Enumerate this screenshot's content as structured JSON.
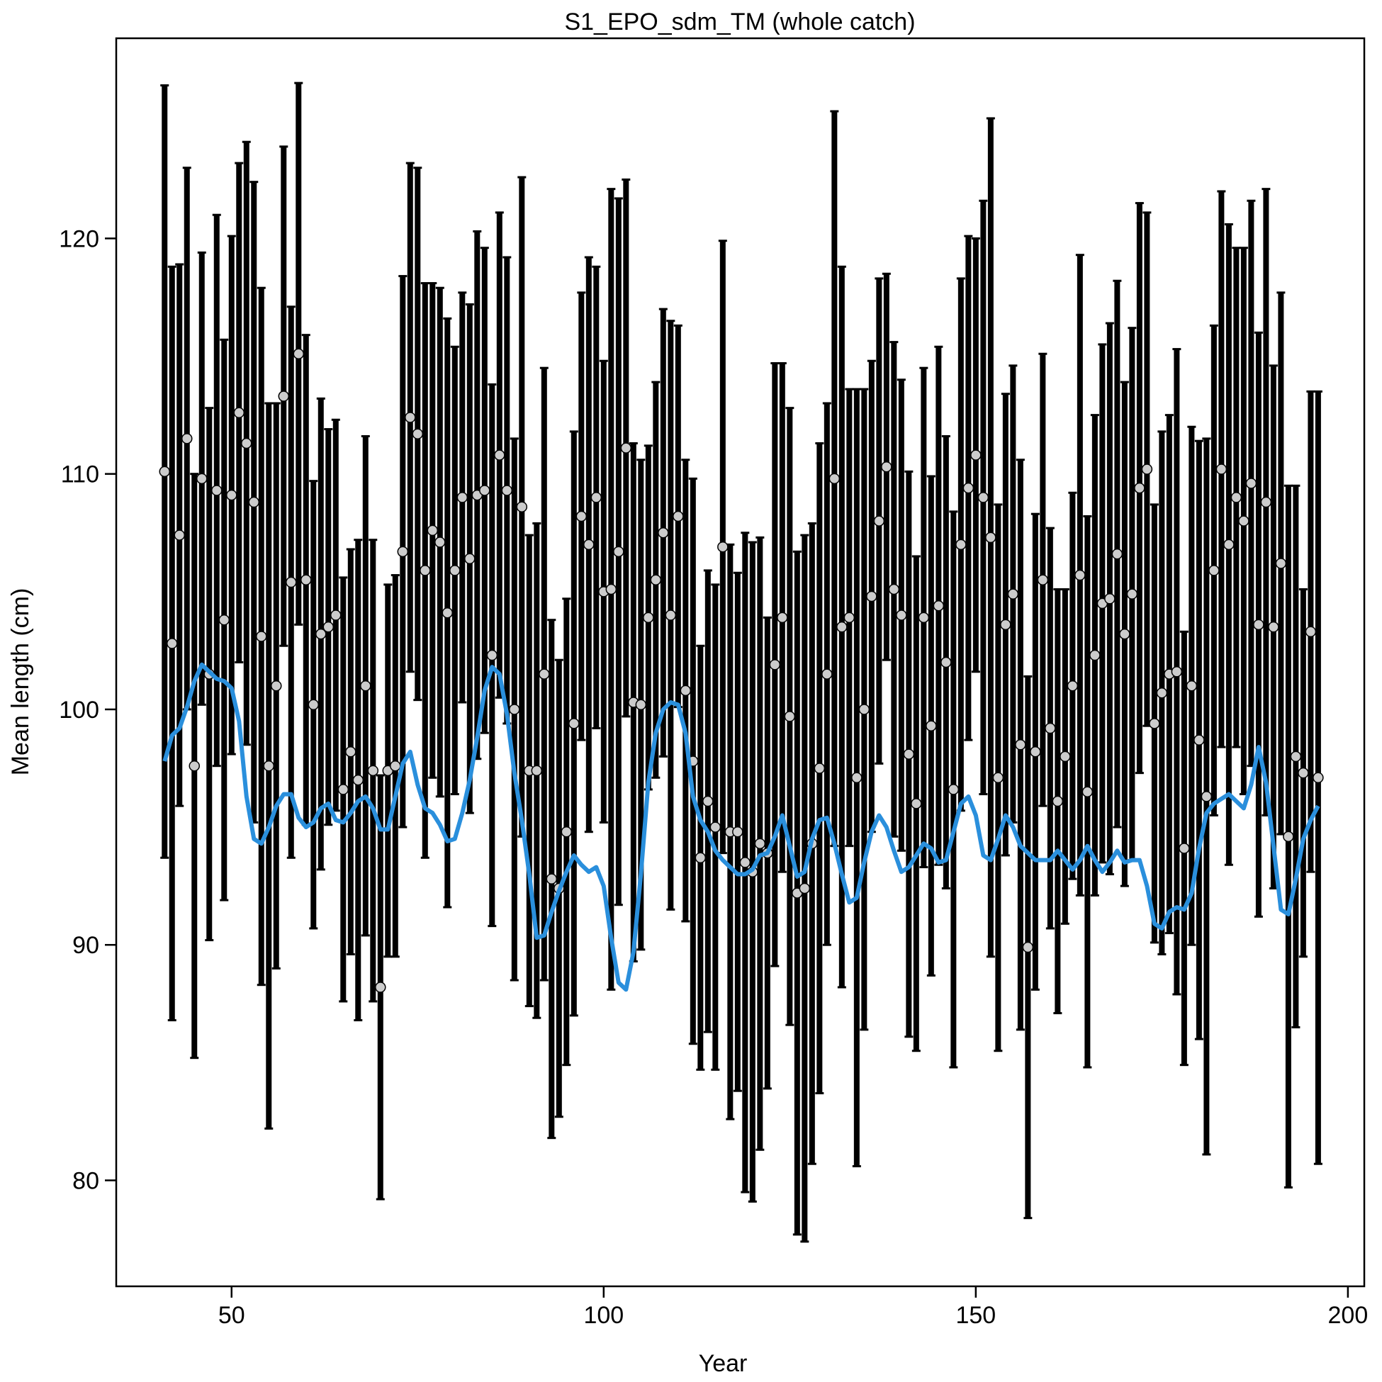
{
  "chart_data": {
    "type": "errorbar",
    "title": "S1_EPO_sdm_TM (whole catch)",
    "x_label": "Year",
    "y_label": "Mean length (cm)",
    "xlim": [
      34.5,
      202.2
    ],
    "ylim": [
      75.5,
      128.5
    ],
    "xticks": [
      50,
      100,
      150,
      200
    ],
    "yticks": [
      80,
      90,
      100,
      110,
      120
    ],
    "x": [
      41,
      42,
      43,
      44,
      45,
      46,
      47,
      48,
      49,
      50,
      51,
      52,
      53,
      54,
      55,
      56,
      57,
      58,
      59,
      60,
      61,
      62,
      63,
      64,
      65,
      66,
      67,
      68,
      69,
      70,
      71,
      72,
      73,
      74,
      75,
      76,
      77,
      78,
      79,
      80,
      81,
      82,
      83,
      84,
      85,
      86,
      87,
      88,
      89,
      90,
      91,
      92,
      93,
      94,
      95,
      96,
      97,
      98,
      99,
      100,
      101,
      102,
      103,
      104,
      105,
      106,
      107,
      108,
      109,
      110,
      111,
      112,
      113,
      114,
      115,
      116,
      117,
      118,
      119,
      120,
      121,
      122,
      123,
      124,
      125,
      126,
      127,
      128,
      129,
      130,
      131,
      132,
      133,
      134,
      135,
      136,
      137,
      138,
      139,
      140,
      141,
      142,
      143,
      144,
      145,
      146,
      147,
      148,
      149,
      150,
      151,
      152,
      153,
      154,
      155,
      156,
      157,
      158,
      159,
      160,
      161,
      162,
      163,
      164,
      165,
      166,
      167,
      168,
      169,
      170,
      171,
      172,
      173,
      174,
      175,
      176,
      177,
      178,
      179,
      180,
      181,
      182,
      183,
      184,
      185,
      186,
      187,
      188,
      189,
      190,
      191,
      192,
      193,
      194,
      195,
      196
    ],
    "series": [
      {
        "color": "#cccccc",
        "values": [
          110.1,
          102.8,
          107.4,
          111.5,
          97.6,
          109.8,
          101.5,
          109.3,
          103.8,
          109.1,
          112.6,
          111.3,
          108.8,
          103.1,
          97.6,
          101.0,
          113.3,
          105.4,
          115.1,
          105.5,
          100.2,
          103.2,
          103.5,
          104.0,
          96.6,
          98.2,
          97.0,
          101.0,
          97.4,
          88.2,
          97.4,
          97.6,
          106.7,
          112.4,
          111.7,
          105.9,
          107.6,
          107.1,
          104.1,
          105.9,
          109.0,
          106.4,
          109.1,
          109.3,
          102.3,
          110.8,
          109.3,
          100.0,
          108.6,
          97.4,
          97.4,
          101.5,
          92.8,
          92.4,
          94.8,
          99.4,
          108.2,
          107.0,
          109.0,
          105.0,
          105.1,
          106.7,
          111.1,
          100.3,
          100.2,
          103.9,
          105.5,
          107.5,
          104.0,
          108.2,
          100.8,
          97.8,
          93.7,
          96.1,
          95.0,
          106.9,
          94.8,
          94.8,
          93.5,
          93.1,
          94.3,
          93.9,
          101.9,
          103.9,
          99.7,
          92.2,
          92.4,
          94.3,
          97.5,
          101.5,
          109.8,
          103.5,
          103.9,
          97.1,
          100.0,
          104.8,
          108.0,
          110.3,
          105.1,
          104.0,
          98.1,
          96.0,
          103.9,
          99.3,
          104.4,
          102.0,
          96.6,
          107.0,
          109.4,
          110.8,
          109.0,
          107.3,
          97.1,
          103.6,
          104.9,
          98.5,
          89.9,
          98.2,
          105.5,
          99.2,
          96.1,
          98.0,
          101.0,
          105.7,
          96.5,
          102.3,
          104.5,
          104.7,
          106.6,
          103.2,
          104.9,
          109.4,
          110.2,
          99.4,
          100.7,
          101.5,
          101.6,
          94.1,
          101.0,
          98.7,
          96.3,
          105.9,
          110.2,
          107.0,
          109.0,
          108.0,
          109.6,
          103.6,
          108.8,
          103.5,
          106.2,
          94.6,
          98.0,
          97.3,
          103.3,
          97.1
        ],
        "errors": [
          16.4,
          16.0,
          11.5,
          11.5,
          12.4,
          9.6,
          11.3,
          11.7,
          11.9,
          11.0,
          10.6,
          12.8,
          13.6,
          14.8,
          15.4,
          12.0,
          10.6,
          11.7,
          11.5,
          10.4,
          9.5,
          10.0,
          8.4,
          8.3,
          9.0,
          8.6,
          10.2,
          10.6,
          9.8,
          9.0,
          7.9,
          8.1,
          11.7,
          10.8,
          11.3,
          12.2,
          10.5,
          10.8,
          12.5,
          9.5,
          8.7,
          10.8,
          11.2,
          10.3,
          11.5,
          10.3,
          9.9,
          11.5,
          14.0,
          10.0,
          10.5,
          13.0,
          11.0,
          9.7,
          9.9,
          12.4,
          9.5,
          12.2,
          9.8,
          9.8,
          17.0,
          15.0,
          11.4,
          11.0,
          10.4,
          7.3,
          8.4,
          9.5,
          12.5,
          8.1,
          9.8,
          12.0,
          9.0,
          9.8,
          10.3,
          13.0,
          12.2,
          11.0,
          14.0,
          14.0,
          13.0,
          10.0,
          12.8,
          10.8,
          13.1,
          14.5,
          15.0,
          13.6,
          13.8,
          11.5,
          15.6,
          15.3,
          9.7,
          16.5,
          13.6,
          10.0,
          10.3,
          8.2,
          10.5,
          10.0,
          12.0,
          10.5,
          10.6,
          10.6,
          11.0,
          9.6,
          11.8,
          11.3,
          10.7,
          9.2,
          12.6,
          17.8,
          11.6,
          9.8,
          9.7,
          12.1,
          11.5,
          10.1,
          9.6,
          8.5,
          9.0,
          7.1,
          8.2,
          13.6,
          11.7,
          10.2,
          11.0,
          11.7,
          11.6,
          10.7,
          11.3,
          12.1,
          10.9,
          9.3,
          11.1,
          11.0,
          13.7,
          9.2,
          11.0,
          12.7,
          15.2,
          10.4,
          11.8,
          13.6,
          10.6,
          11.6,
          12.0,
          12.4,
          13.3,
          11.1,
          11.5,
          14.9,
          11.5,
          7.8,
          10.2,
          16.4
        ]
      },
      {
        "color": "#2a8fdc",
        "values": [
          97.8,
          98.9,
          99.2,
          100.1,
          101.2,
          101.9,
          101.6,
          101.3,
          101.2,
          100.9,
          99.5,
          96.3,
          94.5,
          94.3,
          95.0,
          95.9,
          96.4,
          96.4,
          95.4,
          95.0,
          95.2,
          95.8,
          96.0,
          95.3,
          95.2,
          95.6,
          96.1,
          96.3,
          95.8,
          94.9,
          94.9,
          96.3,
          97.7,
          98.2,
          96.8,
          95.8,
          95.6,
          95.1,
          94.4,
          94.5,
          95.6,
          97.0,
          98.8,
          100.8,
          101.8,
          101.5,
          99.8,
          97.3,
          95.3,
          93.0,
          90.3,
          90.4,
          91.4,
          92.3,
          93.1,
          93.8,
          93.4,
          93.1,
          93.3,
          92.5,
          90.3,
          88.4,
          88.1,
          89.7,
          93.0,
          96.9,
          99.0,
          100.0,
          100.3,
          100.2,
          99.0,
          96.3,
          95.3,
          94.8,
          94.0,
          93.6,
          93.3,
          93.0,
          93.0,
          93.2,
          93.8,
          93.9,
          94.6,
          95.5,
          94.2,
          92.9,
          93.1,
          94.5,
          95.3,
          95.4,
          94.3,
          93.0,
          91.8,
          92.0,
          93.5,
          94.8,
          95.5,
          95.0,
          94.0,
          93.1,
          93.3,
          93.8,
          94.3,
          94.1,
          93.5,
          93.6,
          94.8,
          96.0,
          96.3,
          95.5,
          93.8,
          93.6,
          94.5,
          95.5,
          95.0,
          94.2,
          93.9,
          93.6,
          93.6,
          93.6,
          94.0,
          93.6,
          93.2,
          93.6,
          94.2,
          93.6,
          93.1,
          93.5,
          94.0,
          93.5,
          93.6,
          93.6,
          92.5,
          90.9,
          90.7,
          91.4,
          91.6,
          91.5,
          92.2,
          94.1,
          95.6,
          96.0,
          96.2,
          96.4,
          96.1,
          95.8,
          96.8,
          98.4,
          96.9,
          94.2,
          91.5,
          91.3,
          92.8,
          94.5,
          95.3,
          95.9
        ]
      }
    ]
  }
}
